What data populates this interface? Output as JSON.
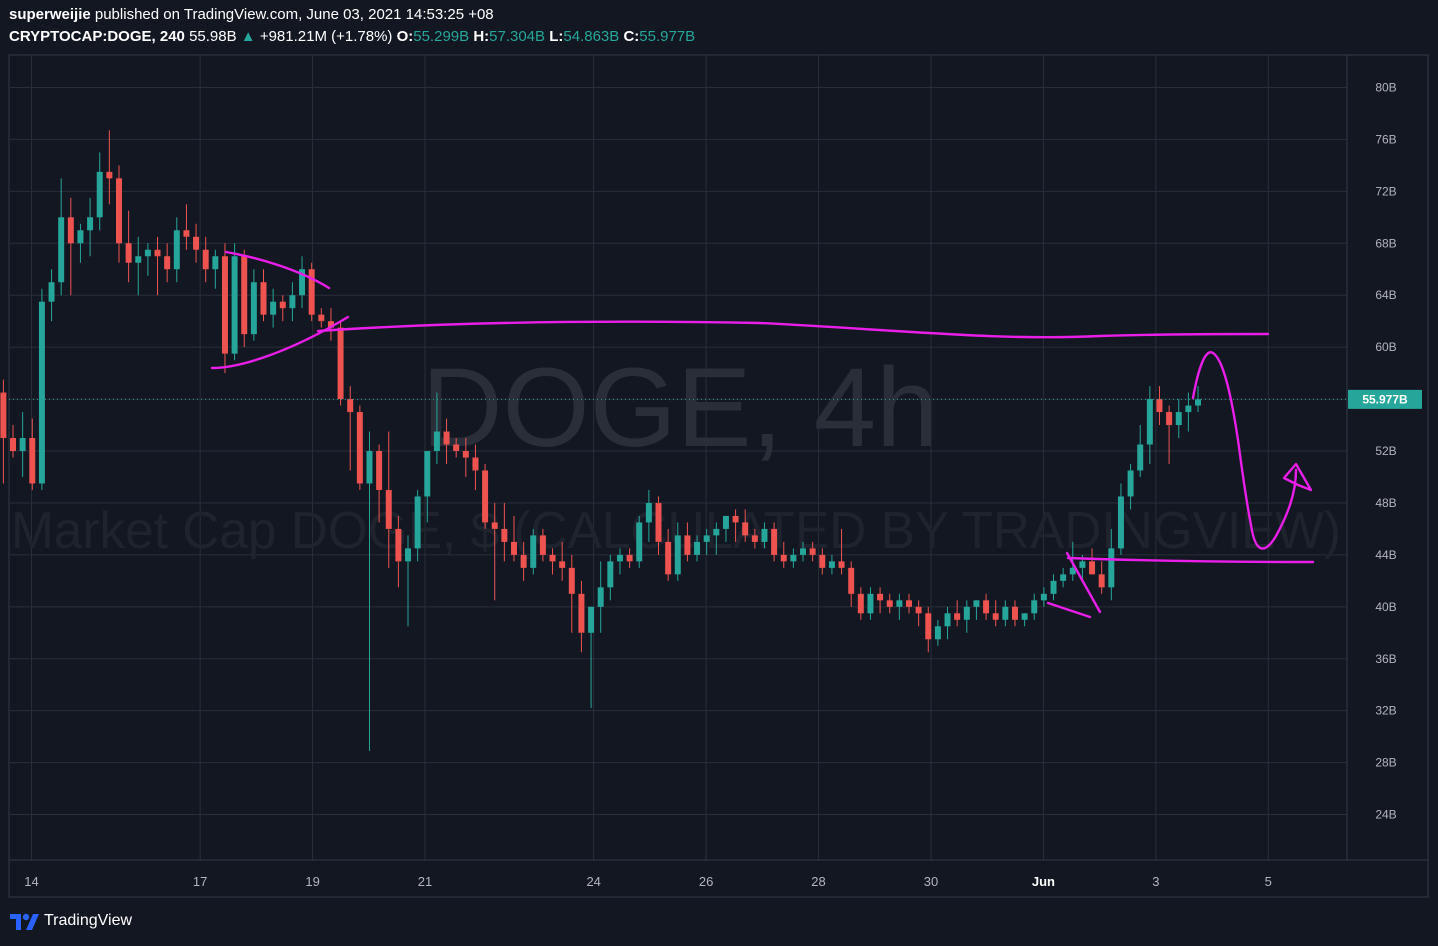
{
  "header": {
    "author": "superweijie",
    "published_text": "published on TradingView.com, June 03, 2021 14:53:25 +08",
    "symbol": "CRYPTOCAP:DOGE, 240",
    "last": "55.98B",
    "change": "+981.21M (+1.78%)",
    "open_label": "O:",
    "open": "55.299B",
    "high_label": "H:",
    "high": "57.304B",
    "low_label": "L:",
    "low": "54.863B",
    "close_label": "C:",
    "close": "55.977B"
  },
  "watermark": {
    "line1": "DOGE, 4h",
    "line2": "Market Cap DOGE, $ (CALCULATED BY TRADINGVIEW)"
  },
  "footer": {
    "brand": "TradingView"
  },
  "colors": {
    "background": "#131722",
    "grid": "#2a2e39",
    "up": "#26a69a",
    "down": "#ef5350",
    "drawing": "#e91ee9",
    "price_tag": "#26a69a"
  },
  "chart_data": {
    "type": "candlestick",
    "timeframe": "4h",
    "y_unit": "B",
    "ylim": [
      20.5,
      82.5
    ],
    "y_ticks": [
      24,
      28,
      32,
      36,
      40,
      44,
      48,
      52,
      56,
      60,
      64,
      68,
      72,
      76,
      80
    ],
    "y_tick_labels": [
      "24B",
      "28B",
      "32B",
      "36B",
      "40B",
      "44B",
      "48B",
      "52B",
      "56B",
      "60B",
      "64B",
      "68B",
      "72B",
      "76B",
      "80B"
    ],
    "x_ticks": [
      {
        "label": "14",
        "day": 14,
        "bold": false
      },
      {
        "label": "17",
        "day": 17,
        "bold": false
      },
      {
        "label": "19",
        "day": 19,
        "bold": false
      },
      {
        "label": "21",
        "day": 21,
        "bold": false
      },
      {
        "label": "24",
        "day": 24,
        "bold": false
      },
      {
        "label": "26",
        "day": 26,
        "bold": false
      },
      {
        "label": "28",
        "day": 28,
        "bold": false
      },
      {
        "label": "30",
        "day": 30,
        "bold": false
      },
      {
        "label": "Jun",
        "day": 32,
        "bold": true
      },
      {
        "label": "3",
        "day": 34,
        "bold": false
      },
      {
        "label": "5",
        "day": 36,
        "bold": false
      }
    ],
    "x_range_days": [
      13.6,
      37.4
    ],
    "current_price": 55.977,
    "current_price_label": "55.977B",
    "grid": true,
    "candles_ohlc": [
      [
        56.5,
        57.5,
        49.5,
        53.0
      ],
      [
        53.0,
        54.0,
        51.5,
        52.0
      ],
      [
        52.0,
        55.0,
        50.0,
        53.0
      ],
      [
        53.0,
        54.5,
        49.0,
        49.5
      ],
      [
        49.5,
        64.5,
        49.0,
        63.5
      ],
      [
        63.5,
        66.0,
        62.0,
        65.0
      ],
      [
        65.0,
        73.0,
        64.0,
        70.0
      ],
      [
        70.0,
        71.5,
        64.0,
        68.0
      ],
      [
        68.0,
        69.5,
        66.5,
        69.0
      ],
      [
        69.0,
        71.5,
        67.0,
        70.0
      ],
      [
        70.0,
        75.0,
        69.0,
        73.5
      ],
      [
        73.5,
        76.7,
        71.0,
        73.0
      ],
      [
        73.0,
        74.0,
        66.5,
        68.0
      ],
      [
        68.0,
        70.5,
        65.0,
        66.5
      ],
      [
        66.5,
        68.5,
        64.0,
        67.0
      ],
      [
        67.0,
        68.0,
        65.5,
        67.5
      ],
      [
        67.5,
        68.5,
        64.0,
        67.0
      ],
      [
        67.0,
        68.0,
        65.0,
        66.0
      ],
      [
        66.0,
        70.0,
        65.0,
        69.0
      ],
      [
        69.0,
        71.0,
        67.5,
        68.5
      ],
      [
        68.5,
        69.5,
        66.5,
        67.5
      ],
      [
        67.5,
        68.5,
        65.0,
        66.0
      ],
      [
        66.0,
        67.5,
        64.5,
        67.0
      ],
      [
        67.0,
        68.0,
        58.0,
        59.5
      ],
      [
        59.5,
        68.0,
        59.0,
        67.0
      ],
      [
        67.0,
        67.5,
        60.0,
        61.0
      ],
      [
        61.0,
        66.0,
        60.5,
        65.0
      ],
      [
        65.0,
        66.0,
        62.0,
        62.5
      ],
      [
        62.5,
        64.5,
        61.5,
        63.5
      ],
      [
        63.5,
        64.0,
        62.0,
        63.0
      ],
      [
        63.0,
        65.0,
        62.0,
        64.0
      ],
      [
        64.0,
        67.0,
        63.0,
        66.0
      ],
      [
        66.0,
        66.5,
        62.0,
        62.5
      ],
      [
        62.5,
        63.0,
        61.5,
        62.0
      ],
      [
        62.0,
        63.0,
        60.5,
        61.5
      ],
      [
        61.5,
        62.0,
        55.5,
        56.0
      ],
      [
        56.0,
        57.0,
        50.5,
        55.0
      ],
      [
        55.0,
        55.5,
        49.0,
        49.5
      ],
      [
        49.5,
        53.5,
        28.9,
        52.0
      ],
      [
        52.0,
        52.5,
        46.5,
        49.0
      ],
      [
        49.0,
        53.5,
        43.0,
        46.0
      ],
      [
        46.0,
        47.0,
        41.5,
        43.5
      ],
      [
        43.5,
        45.5,
        38.5,
        44.5
      ],
      [
        44.5,
        49.0,
        43.5,
        48.5
      ],
      [
        48.5,
        51.0,
        46.5,
        52.0
      ],
      [
        52.0,
        56.5,
        51.0,
        53.5
      ],
      [
        53.5,
        54.5,
        51.0,
        52.5
      ],
      [
        52.5,
        53.0,
        51.5,
        52.0
      ],
      [
        52.0,
        53.0,
        50.0,
        51.5
      ],
      [
        51.5,
        52.5,
        49.0,
        50.5
      ],
      [
        50.5,
        51.0,
        46.0,
        46.5
      ],
      [
        46.5,
        48.0,
        40.5,
        46.0
      ],
      [
        46.0,
        48.0,
        43.5,
        45.0
      ],
      [
        45.0,
        47.0,
        43.5,
        44.0
      ],
      [
        44.0,
        45.0,
        42.0,
        43.0
      ],
      [
        43.0,
        46.0,
        42.5,
        45.5
      ],
      [
        45.5,
        46.0,
        43.5,
        44.0
      ],
      [
        44.0,
        44.5,
        42.5,
        43.5
      ],
      [
        43.5,
        45.0,
        42.0,
        43.0
      ],
      [
        43.0,
        44.0,
        38.0,
        41.0
      ],
      [
        41.0,
        42.0,
        36.5,
        38.0
      ],
      [
        38.0,
        40.0,
        32.2,
        40.0
      ],
      [
        40.0,
        43.5,
        38.0,
        41.5
      ],
      [
        41.5,
        44.0,
        40.5,
        43.5
      ],
      [
        43.5,
        44.5,
        42.5,
        44.0
      ],
      [
        44.0,
        44.5,
        43.0,
        43.5
      ],
      [
        43.5,
        47.0,
        43.0,
        46.5
      ],
      [
        46.5,
        49.0,
        45.0,
        48.0
      ],
      [
        48.0,
        48.5,
        44.0,
        45.0
      ],
      [
        45.0,
        46.0,
        42.0,
        42.5
      ],
      [
        42.5,
        46.5,
        42.0,
        45.5
      ],
      [
        45.5,
        46.5,
        43.5,
        44.0
      ],
      [
        44.0,
        45.5,
        43.5,
        45.0
      ],
      [
        45.0,
        46.0,
        44.0,
        45.5
      ],
      [
        45.5,
        46.5,
        44.0,
        46.0
      ],
      [
        46.0,
        47.0,
        45.0,
        47.0
      ],
      [
        47.0,
        47.5,
        45.0,
        46.5
      ],
      [
        46.5,
        47.5,
        45.0,
        45.5
      ],
      [
        45.5,
        46.0,
        44.5,
        45.0
      ],
      [
        45.0,
        46.5,
        44.5,
        46.0
      ],
      [
        46.0,
        46.5,
        43.5,
        44.0
      ],
      [
        44.0,
        45.0,
        43.0,
        43.5
      ],
      [
        43.5,
        44.5,
        43.0,
        44.0
      ],
      [
        44.0,
        45.0,
        43.5,
        44.5
      ],
      [
        44.5,
        45.0,
        43.5,
        44.0
      ],
      [
        44.0,
        44.5,
        42.5,
        43.0
      ],
      [
        43.0,
        44.0,
        42.5,
        43.5
      ],
      [
        43.5,
        46.0,
        42.5,
        43.0
      ],
      [
        43.0,
        43.5,
        40.0,
        41.0
      ],
      [
        41.0,
        41.5,
        39.0,
        39.5
      ],
      [
        39.5,
        41.5,
        39.0,
        41.0
      ],
      [
        41.0,
        41.5,
        39.5,
        40.5
      ],
      [
        40.5,
        41.0,
        39.5,
        40.0
      ],
      [
        40.0,
        41.0,
        39.0,
        40.5
      ],
      [
        40.5,
        41.0,
        39.5,
        40.0
      ],
      [
        40.0,
        40.5,
        38.5,
        39.5
      ],
      [
        39.5,
        40.0,
        36.5,
        37.5
      ],
      [
        37.5,
        39.0,
        37.0,
        38.5
      ],
      [
        38.5,
        40.0,
        37.5,
        39.5
      ],
      [
        39.5,
        40.5,
        38.5,
        39.0
      ],
      [
        39.0,
        40.5,
        38.0,
        40.0
      ],
      [
        40.0,
        40.5,
        39.0,
        40.5
      ],
      [
        40.5,
        41.0,
        39.0,
        39.5
      ],
      [
        39.5,
        40.5,
        38.5,
        39.0
      ],
      [
        39.0,
        40.5,
        38.5,
        40.0
      ],
      [
        40.0,
        40.5,
        38.5,
        39.0
      ],
      [
        39.0,
        39.5,
        38.5,
        39.5
      ],
      [
        39.5,
        41.0,
        39.0,
        40.5
      ],
      [
        40.5,
        41.5,
        40.0,
        41.0
      ],
      [
        41.0,
        42.5,
        40.5,
        42.0
      ],
      [
        42.0,
        43.0,
        41.5,
        42.5
      ],
      [
        42.5,
        45.0,
        42.0,
        43.0
      ],
      [
        43.0,
        44.0,
        42.0,
        43.5
      ],
      [
        43.5,
        44.5,
        42.5,
        42.5
      ],
      [
        42.5,
        43.5,
        41.0,
        41.5
      ],
      [
        41.5,
        46.0,
        40.5,
        44.5
      ],
      [
        44.5,
        49.5,
        44.0,
        48.5
      ],
      [
        48.5,
        51.0,
        47.5,
        50.5
      ],
      [
        50.5,
        54.0,
        50.0,
        52.5
      ],
      [
        52.5,
        57.0,
        51.0,
        56.0
      ],
      [
        56.0,
        57.0,
        54.0,
        55.0
      ],
      [
        55.0,
        55.5,
        51.0,
        54.0
      ],
      [
        54.0,
        56.0,
        53.0,
        55.0
      ],
      [
        55.0,
        56.5,
        53.5,
        55.5
      ],
      [
        55.5,
        57.0,
        55.0,
        55.98
      ]
    ]
  }
}
